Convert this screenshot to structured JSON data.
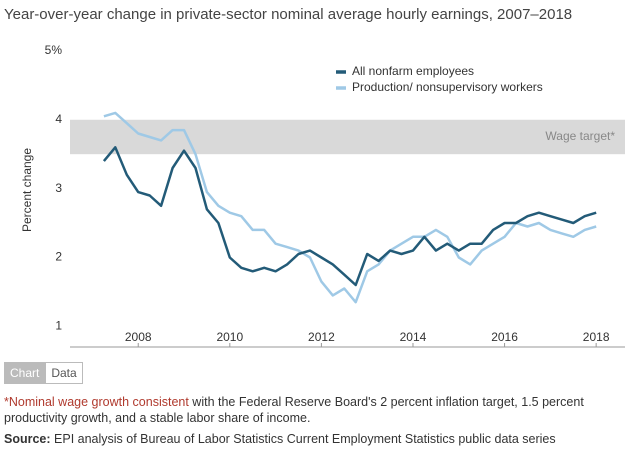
{
  "chart_data": {
    "type": "line",
    "title": "Year-over-year change in private-sector nominal average hourly earnings, 2007–2018",
    "y_label": "Percent change",
    "x": [
      2007.25,
      2007.5,
      2007.75,
      2008.0,
      2008.25,
      2008.5,
      2008.75,
      2009.0,
      2009.25,
      2009.5,
      2009.75,
      2010.0,
      2010.25,
      2010.5,
      2010.75,
      2011.0,
      2011.25,
      2011.5,
      2011.75,
      2012.0,
      2012.25,
      2012.5,
      2012.75,
      2013.0,
      2013.25,
      2013.5,
      2013.75,
      2014.0,
      2014.25,
      2014.5,
      2014.75,
      2015.0,
      2015.25,
      2015.5,
      2015.75,
      2016.0,
      2016.25,
      2016.5,
      2016.75,
      2017.0,
      2017.25,
      2017.5,
      2017.75,
      2018.0
    ],
    "series": [
      {
        "name": "All nonfarm employees",
        "color": "#235b78",
        "values": [
          3.4,
          3.6,
          3.2,
          2.95,
          2.9,
          2.75,
          3.3,
          3.55,
          3.3,
          2.7,
          2.5,
          2.0,
          1.85,
          1.8,
          1.85,
          1.8,
          1.9,
          2.05,
          2.1,
          2.0,
          1.9,
          1.75,
          1.6,
          2.05,
          1.95,
          2.1,
          2.05,
          2.1,
          2.3,
          2.1,
          2.2,
          2.1,
          2.2,
          2.2,
          2.4,
          2.5,
          2.5,
          2.6,
          2.65,
          2.6,
          2.55,
          2.5,
          2.6,
          2.65
        ]
      },
      {
        "name": "Production/ nonsupervisory workers",
        "color": "#9fc9e6",
        "values": [
          4.05,
          4.1,
          3.95,
          3.8,
          3.75,
          3.7,
          3.85,
          3.85,
          3.5,
          2.95,
          2.75,
          2.65,
          2.6,
          2.4,
          2.4,
          2.2,
          2.15,
          2.1,
          2.0,
          1.65,
          1.45,
          1.55,
          1.35,
          1.8,
          1.9,
          2.1,
          2.2,
          2.3,
          2.3,
          2.4,
          2.3,
          2.0,
          1.9,
          2.1,
          2.2,
          2.3,
          2.5,
          2.45,
          2.5,
          2.4,
          2.35,
          2.3,
          2.4,
          2.45
        ]
      }
    ],
    "band": {
      "label": "Wage target*",
      "from": 3.5,
      "to": 4,
      "color": "#d9d9d9"
    },
    "xlim": [
      2006.51,
      2018.63
    ],
    "xticks": [
      2008,
      2010,
      2012,
      2014,
      2016,
      2018
    ],
    "ylim": [
      0.7,
      5.1
    ],
    "yticks": [
      1,
      2,
      3,
      4,
      {
        "value": 5,
        "label": "5%"
      }
    ],
    "grid": false,
    "legend": "top right"
  },
  "tabs": [
    "Chart",
    "Data"
  ],
  "footnote": {
    "highlight": "*Nominal wage growth consistent",
    "text": " with the Federal Reserve Board's 2 percent inflation target, 1.5 percent productivity growth, and a stable labor share of income."
  },
  "source": {
    "label": "Source:",
    "text": " EPI analysis of Bureau of Labor Statistics Current Employment Statistics public data series"
  }
}
